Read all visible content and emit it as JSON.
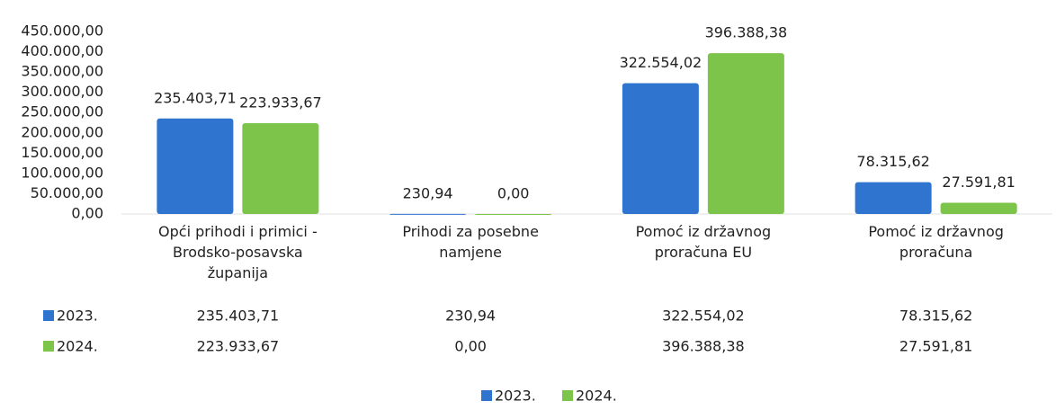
{
  "chart_data": {
    "type": "bar",
    "categories": [
      "Opći prihodi i primici - Brodsko-posavska županija",
      "Prihodi za posebne namjene",
      "Pomoć iz državnog proračuna EU",
      "Pomoć iz državnog proračuna"
    ],
    "series": [
      {
        "name": "2023.",
        "color": "#2f74cf",
        "values": [
          235403.71,
          230.94,
          322554.02,
          78315.62
        ],
        "value_labels": [
          "235.403,71",
          "230,94",
          "322.554,02",
          "78.315,62"
        ]
      },
      {
        "name": "2024.",
        "color": "#7cc44a",
        "values": [
          223933.67,
          0,
          396388.38,
          27591.81
        ],
        "value_labels": [
          "223.933,67",
          "0,00",
          "396.388,38",
          "27.591,81"
        ]
      }
    ],
    "ylim": [
      0,
      450000
    ],
    "yticks": [
      {
        "value": 0,
        "label": "0,00"
      },
      {
        "value": 50000,
        "label": "50.000,00"
      },
      {
        "value": 100000,
        "label": "100.000,00"
      },
      {
        "value": 150000,
        "label": "150.000,00"
      },
      {
        "value": 200000,
        "label": "200.000,00"
      },
      {
        "value": 250000,
        "label": "250.000,00"
      },
      {
        "value": 300000,
        "label": "300.000,00"
      },
      {
        "value": 350000,
        "label": "350.000,00"
      },
      {
        "value": 400000,
        "label": "400.000,00"
      },
      {
        "value": 450000,
        "label": "450.000,00"
      }
    ],
    "grid": false,
    "legend": "bottom"
  }
}
